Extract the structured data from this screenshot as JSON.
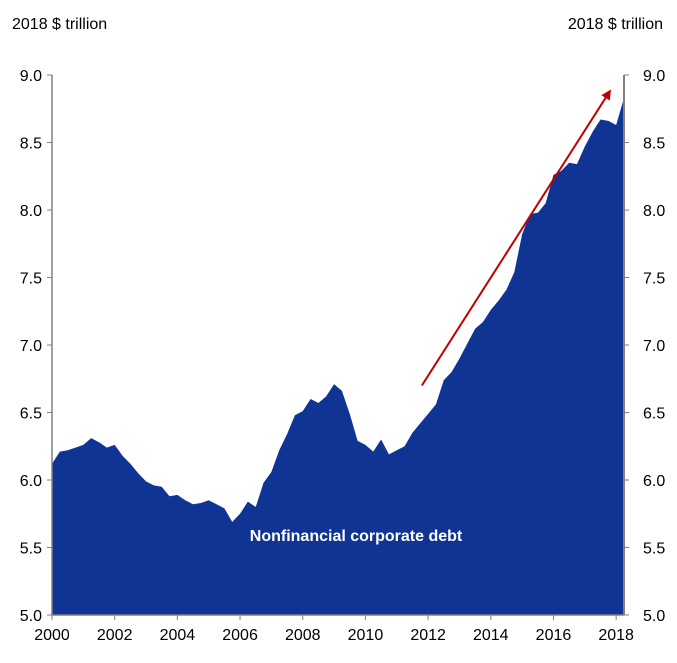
{
  "chart_data": {
    "type": "area",
    "title": "",
    "xlabel": "",
    "ylabel_left": "2018 $ trillion",
    "ylabel_right": "2018 $ trillion",
    "xlim": [
      2000,
      2018.25
    ],
    "ylim": [
      5.0,
      9.0
    ],
    "x_ticks": [
      2000,
      2002,
      2004,
      2006,
      2008,
      2010,
      2012,
      2014,
      2016,
      2018
    ],
    "y_ticks": [
      5.0,
      5.5,
      6.0,
      6.5,
      7.0,
      7.5,
      8.0,
      8.5,
      9.0
    ],
    "y_tick_labels": [
      "5.0",
      "5.5",
      "6.0",
      "6.5",
      "7.0",
      "7.5",
      "8.0",
      "8.5",
      "9.0"
    ],
    "grid": false,
    "series": [
      {
        "name": "Nonfinancial corporate debt",
        "color": "#0F3494",
        "x": [
          2000.0,
          2000.25,
          2000.5,
          2000.75,
          2001.0,
          2001.25,
          2001.5,
          2001.75,
          2002.0,
          2002.25,
          2002.5,
          2002.75,
          2003.0,
          2003.25,
          2003.5,
          2003.75,
          2004.0,
          2004.25,
          2004.5,
          2004.75,
          2005.0,
          2005.25,
          2005.5,
          2005.75,
          2006.0,
          2006.25,
          2006.5,
          2006.75,
          2007.0,
          2007.25,
          2007.5,
          2007.75,
          2008.0,
          2008.25,
          2008.5,
          2008.75,
          2009.0,
          2009.25,
          2009.5,
          2009.75,
          2010.0,
          2010.25,
          2010.5,
          2010.75,
          2011.0,
          2011.25,
          2011.5,
          2011.75,
          2012.0,
          2012.25,
          2012.5,
          2012.75,
          2013.0,
          2013.25,
          2013.5,
          2013.75,
          2014.0,
          2014.25,
          2014.5,
          2014.75,
          2015.0,
          2015.25,
          2015.5,
          2015.75,
          2016.0,
          2016.25,
          2016.5,
          2016.75,
          2017.0,
          2017.25,
          2017.5,
          2017.75,
          2018.0,
          2018.25
        ],
        "values": [
          6.12,
          6.21,
          6.22,
          6.24,
          6.26,
          6.31,
          6.28,
          6.24,
          6.26,
          6.18,
          6.12,
          6.05,
          5.99,
          5.96,
          5.95,
          5.88,
          5.89,
          5.85,
          5.82,
          5.83,
          5.85,
          5.82,
          5.79,
          5.69,
          5.75,
          5.84,
          5.8,
          5.98,
          6.06,
          6.22,
          6.34,
          6.48,
          6.51,
          6.6,
          6.57,
          6.62,
          6.71,
          6.66,
          6.49,
          6.29,
          6.26,
          6.21,
          6.3,
          6.19,
          6.22,
          6.25,
          6.35,
          6.42,
          6.49,
          6.56,
          6.74,
          6.8,
          6.9,
          7.01,
          7.12,
          7.17,
          7.26,
          7.33,
          7.41,
          7.54,
          7.82,
          7.97,
          7.98,
          8.05,
          8.26,
          8.29,
          8.35,
          8.34,
          8.47,
          8.58,
          8.67,
          8.66,
          8.63,
          8.83
        ]
      }
    ],
    "annotations": [
      {
        "type": "arrow",
        "color": "#C00000",
        "from": [
          2011.8,
          6.7
        ],
        "to": [
          2017.8,
          8.88
        ]
      }
    ]
  }
}
